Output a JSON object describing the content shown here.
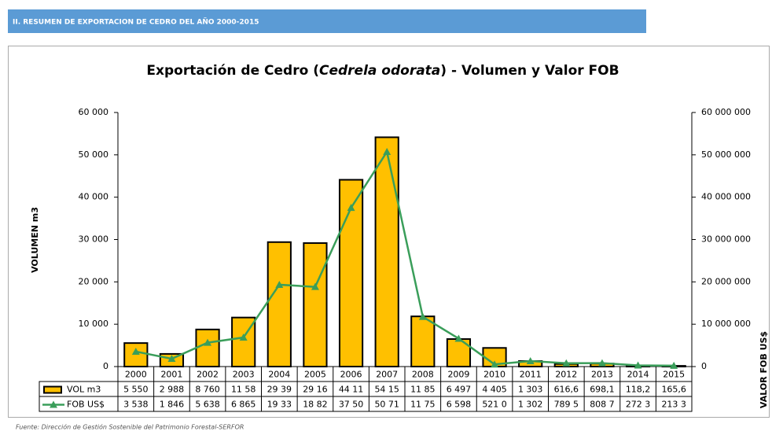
{
  "header": {
    "title": "II. RESUMEN DE EXPORTACION DE CEDRO DEL AÑO 2000-2015"
  },
  "chart_data": {
    "type": "bar-line",
    "title": [
      "Exportación de Cedro (",
      "Cedrela odorata",
      ") - Volumen y Valor FOB"
    ],
    "ylabel": "VOLUMEN m3",
    "y2label": "VALOR FOB US$",
    "categories": [
      "2000",
      "2001",
      "2002",
      "2003",
      "2004",
      "2005",
      "2006",
      "2007",
      "2008",
      "2009",
      "2010",
      "2011",
      "2012",
      "2013",
      "2014",
      "2015"
    ],
    "series": [
      {
        "name": "VOL m3",
        "type": "bar",
        "color": "#ffc000",
        "values": [
          5550,
          2988,
          8760,
          11580,
          29390,
          29160,
          44110,
          54150,
          11850,
          6497,
          4405,
          1303,
          616.6,
          698.1,
          118.2,
          165.6
        ],
        "value_labels": [
          "5 550",
          "2 988",
          "8 760",
          "11 58",
          "29 39",
          "29 16",
          "44 11",
          "54 15",
          "11 85",
          "6 497",
          "4 405",
          "1 303",
          "616,6",
          "698,1",
          "118,2",
          "165,6"
        ]
      },
      {
        "name": "FOB US$",
        "type": "line",
        "axis": "y2",
        "color": "#3a9e5a",
        "values": [
          3538000,
          1846000,
          5638000,
          6865000,
          19330000,
          18820000,
          37500000,
          50710000,
          11750000,
          6598000,
          521000,
          1302000,
          789500,
          808700,
          272300,
          213300
        ],
        "value_labels": [
          "3 538",
          "1 846",
          "5 638",
          "6 865",
          "19 33",
          "18 82",
          "37 50",
          "50 71",
          "11 75",
          "6 598",
          "521 0",
          "1 302",
          "789 5",
          "808 7",
          "272 3",
          "213 3"
        ]
      }
    ],
    "ylim": [
      0,
      60000
    ],
    "yticks": [
      0,
      {
        "value": 10000,
        "label": "10 000"
      },
      {
        "value": 20000,
        "label": "20 000"
      },
      {
        "value": 30000,
        "label": "30 000"
      },
      {
        "value": 40000,
        "label": "40 000"
      },
      {
        "value": 50000,
        "label": "50 000"
      },
      {
        "value": 60000,
        "label": "60 000"
      }
    ],
    "y2lim": [
      0,
      60000000
    ],
    "y2ticks": [
      0,
      {
        "value": 10000000,
        "label": "10 000 000"
      },
      {
        "value": 20000000,
        "label": "20 000 000"
      },
      {
        "value": 30000000,
        "label": "30 000 000"
      },
      {
        "value": 40000000,
        "label": "40 000 000"
      },
      {
        "value": 50000000,
        "label": "50 000 000"
      },
      {
        "value": 60000000,
        "label": "60 000 000"
      }
    ]
  },
  "footer": {
    "source": "Fuente: Dirección de Gestión Sostenible del Patrimonio Forestal-SERFOR"
  }
}
